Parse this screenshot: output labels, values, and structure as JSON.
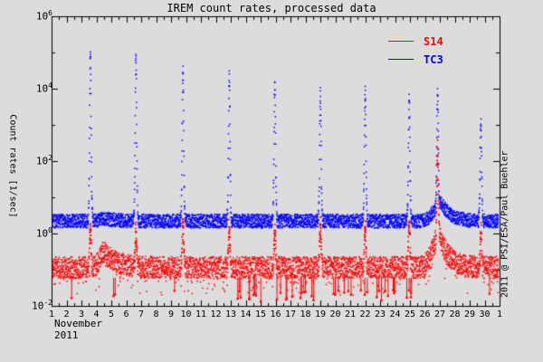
{
  "window": {
    "background": "#dcdcdc",
    "frame_color": "#000000"
  },
  "chart_data": {
    "type": "line",
    "title": "IREM count rates, processed data",
    "ylabel": "Count rates [1/sec]",
    "annotation_right": "2011 @ PSI/ESA/Paul Buehler",
    "x_axis": {
      "month_label": "November",
      "year_label": "2011",
      "tick_labels": [
        "1",
        "2",
        "3",
        "4",
        "5",
        "6",
        "7",
        "8",
        "9",
        "10",
        "11",
        "12",
        "13",
        "14",
        "15",
        "16",
        "17",
        "18",
        "19",
        "20",
        "21",
        "22",
        "23",
        "24",
        "25",
        "26",
        "27",
        "28",
        "29",
        "30",
        "1"
      ],
      "days_span": [
        1,
        31
      ],
      "minor_tick_step_days": 0.5
    },
    "y_axis": {
      "scale": "log",
      "ylim": [
        0.01,
        1000000
      ],
      "tick_exponents": [
        6,
        4,
        2,
        0,
        -2
      ],
      "minor_tick_exponents": [
        5,
        3,
        1,
        -1
      ]
    },
    "legend": {
      "items": [
        {
          "label": "S14",
          "color": "#ff0000"
        },
        {
          "label": "TC3",
          "color": "#0000ff"
        }
      ]
    },
    "series": [
      {
        "name": "S14",
        "color": "#ff0000",
        "baseline": 0.115,
        "noise_dex": 0.3,
        "perigee_days": [
          3.6,
          6.65,
          9.8,
          12.9,
          15.95,
          19.0,
          22.0,
          24.95,
          26.85,
          29.75
        ],
        "perigee_peaks": [
          1.3,
          1.1,
          2.0,
          1.5,
          1.2,
          1.8,
          1.4,
          2.0,
          30,
          1.0
        ],
        "sep_event": {
          "onset": 26.0,
          "peak_day": 27.0,
          "peak_value": 0.85,
          "decay_days": 0.6
        },
        "minor_event": {
          "onset": 3.9,
          "peak_day": 4.55,
          "peak_value": 0.32,
          "decay_days": 0.75
        },
        "dropout_count": 46,
        "dropout_value_range": [
          0.013,
          0.028
        ]
      },
      {
        "name": "TC3",
        "color": "#0000ff",
        "baseline": 2.2,
        "noise_dex": 0.19,
        "perigee_days": [
          3.6,
          6.65,
          9.8,
          12.9,
          15.95,
          19.0,
          22.0,
          24.95,
          26.85,
          29.75
        ],
        "perigee_peaks": [
          80000,
          80000,
          35000,
          22000,
          12000,
          8000,
          8000,
          5000,
          2800,
          1200
        ],
        "sep_event": {
          "onset": 26.0,
          "peak_day": 27.15,
          "peak_value": 6.5,
          "decay_days": 0.6
        },
        "minor_event": {
          "onset": 3.9,
          "peak_day": 4.6,
          "peak_value": 2.55,
          "decay_days": 0.75
        }
      }
    ]
  }
}
